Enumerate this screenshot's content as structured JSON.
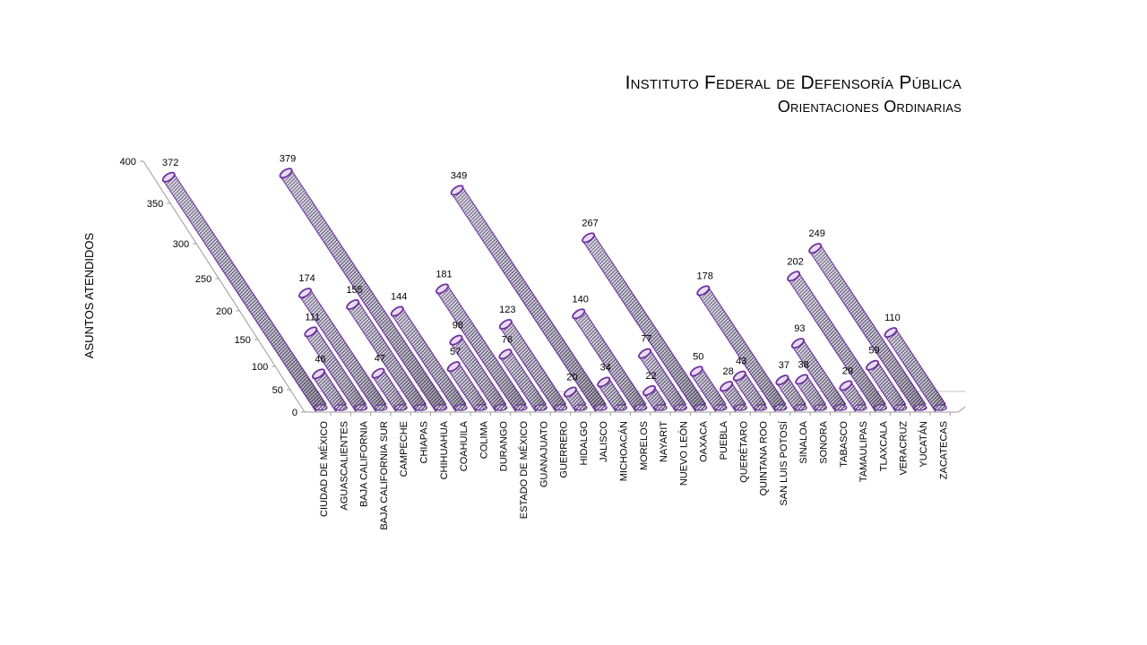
{
  "chart_data": {
    "type": "bar",
    "title": "Instituto Federal de Defensoría Pública",
    "subtitle": "Orientaciones Ordinarias",
    "xlabel": "",
    "ylabel": "ASUNTOS ATENDIDOS",
    "ylim": [
      0,
      400
    ],
    "yticks": [
      0,
      50,
      100,
      150,
      200,
      250,
      300,
      350,
      400
    ],
    "categories": [
      "CIUDAD DE MÉXICO",
      "AGUASCALIENTES",
      "BAJA CALIFORNIA",
      "BAJA CALIFORNIA SUR",
      "CAMPECHE",
      "CHIAPAS",
      "CHIHUAHUA",
      "COAHUILA",
      "COLIMA",
      "DURANGO",
      "ESTADO DE MÉXICO",
      "GUANAJUATO",
      "GUERRERO",
      "HIDALGO",
      "JALISCO",
      "MICHOACÁN",
      "MORELOS",
      "NAYARIT",
      "NUEVO LEÓN",
      "OAXACA",
      "PUEBLA",
      "QUERÉTARO",
      "QUINTANA ROO",
      "SAN LUIS POTOSÍ",
      "SINALOA",
      "SONORA",
      "TABASCO",
      "TAMAULIPAS",
      "TLAXCALA",
      "VERACRUZ",
      "YUCATÁN",
      "ZACATECAS"
    ],
    "values": [
      372,
      46,
      111,
      174,
      47,
      155,
      379,
      144,
      57,
      98,
      181,
      76,
      123,
      20,
      349,
      34,
      140,
      22,
      77,
      267,
      50,
      28,
      43,
      178,
      37,
      38,
      93,
      29,
      202,
      59,
      249,
      110
    ],
    "series_color": "#7030A0",
    "grid": false,
    "legend": "none"
  }
}
